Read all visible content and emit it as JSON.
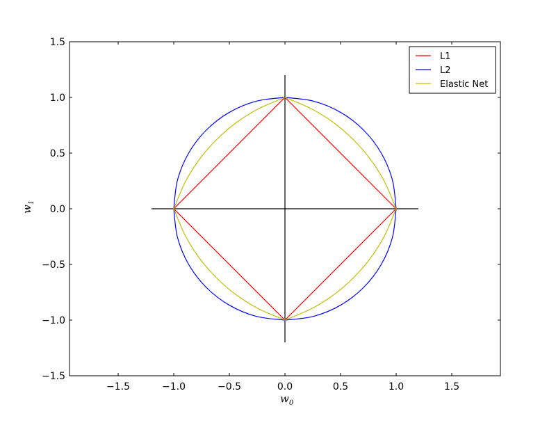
{
  "chart_data": {
    "type": "line",
    "title": "",
    "xlabel": "w",
    "xlabel_sub": "0",
    "ylabel": "w",
    "ylabel_sub": "1",
    "xlim": [
      -1.9375,
      1.9375
    ],
    "ylim": [
      -1.5,
      1.5
    ],
    "xticks": [
      -1.5,
      -1.0,
      -0.5,
      0.0,
      0.5,
      1.0,
      1.5
    ],
    "xtick_labels": [
      "−1.5",
      "−1.0",
      "−0.5",
      "0.0",
      "0.5",
      "1.0",
      "1.5"
    ],
    "yticks": [
      -1.5,
      -1.0,
      -0.5,
      0.0,
      0.5,
      1.0,
      1.5
    ],
    "ytick_labels": [
      "−1.5",
      "−1.0",
      "−0.5",
      "0.0",
      "0.5",
      "1.0",
      "1.5"
    ],
    "grid": false,
    "legend_position": "top-right",
    "reference_lines": [
      {
        "x": [
          -1.2,
          1.2
        ],
        "y": [
          0,
          0
        ],
        "color": "#000000"
      },
      {
        "x": [
          0,
          0
        ],
        "y": [
          -1.2,
          1.2
        ],
        "color": "#000000"
      }
    ],
    "series": [
      {
        "name": "L1",
        "color": "#ff0000",
        "smooth": false,
        "points": [
          [
            1,
            0
          ],
          [
            0,
            1
          ],
          [
            -1,
            0
          ],
          [
            0,
            -1
          ],
          [
            1,
            0
          ]
        ]
      },
      {
        "name": "L2",
        "color": "#0000ff",
        "smooth": true,
        "points": [
          [
            1,
            0
          ],
          [
            0.966,
            0.259
          ],
          [
            0.866,
            0.5
          ],
          [
            0.707,
            0.707
          ],
          [
            0.5,
            0.866
          ],
          [
            0.259,
            0.966
          ],
          [
            0,
            1
          ],
          [
            -0.259,
            0.966
          ],
          [
            -0.5,
            0.866
          ],
          [
            -0.707,
            0.707
          ],
          [
            -0.866,
            0.5
          ],
          [
            -0.966,
            0.259
          ],
          [
            -1,
            0
          ],
          [
            -0.966,
            -0.259
          ],
          [
            -0.866,
            -0.5
          ],
          [
            -0.707,
            -0.707
          ],
          [
            -0.5,
            -0.866
          ],
          [
            -0.259,
            -0.966
          ],
          [
            0,
            -1
          ],
          [
            0.259,
            -0.966
          ],
          [
            0.5,
            -0.866
          ],
          [
            0.707,
            -0.707
          ],
          [
            0.866,
            -0.5
          ],
          [
            0.966,
            -0.259
          ],
          [
            1,
            0
          ]
        ]
      },
      {
        "name": "Elastic Net",
        "color": "#bfbf00",
        "smooth": true,
        "points": [
          [
            1,
            0
          ],
          [
            0.897,
            0.24
          ],
          [
            0.769,
            0.444
          ],
          [
            0.618,
            0.618
          ],
          [
            0.444,
            0.769
          ],
          [
            0.24,
            0.897
          ],
          [
            0,
            1
          ],
          [
            -0.24,
            0.897
          ],
          [
            -0.444,
            0.769
          ],
          [
            -0.618,
            0.618
          ],
          [
            -0.769,
            0.444
          ],
          [
            -0.897,
            0.24
          ],
          [
            -1,
            0
          ],
          [
            -0.897,
            -0.24
          ],
          [
            -0.769,
            -0.444
          ],
          [
            -0.618,
            -0.618
          ],
          [
            -0.444,
            -0.769
          ],
          [
            -0.24,
            -0.897
          ],
          [
            0,
            -1
          ],
          [
            0.24,
            -0.897
          ],
          [
            0.444,
            -0.769
          ],
          [
            0.618,
            -0.618
          ],
          [
            0.769,
            -0.444
          ],
          [
            0.897,
            -0.24
          ],
          [
            1,
            0
          ]
        ]
      }
    ]
  }
}
